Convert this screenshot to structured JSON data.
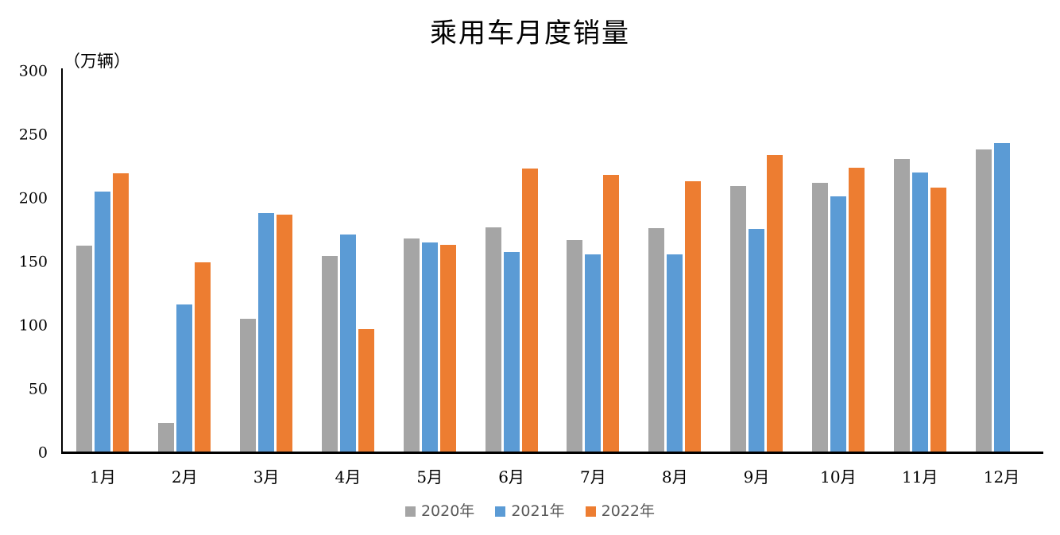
{
  "chart_data": {
    "type": "bar",
    "title": "乘用车月度销量",
    "y_unit_label": "（万辆）",
    "xlabel": "",
    "ylabel": "万辆",
    "ylim": [
      0,
      300
    ],
    "ytick_interval": 50,
    "yticks": [
      0,
      50,
      100,
      150,
      200,
      250,
      300
    ],
    "grid": false,
    "legend_position": "bottom",
    "categories": [
      "1月",
      "2月",
      "3月",
      "4月",
      "5月",
      "6月",
      "7月",
      "8月",
      "9月",
      "10月",
      "11月",
      "12月"
    ],
    "series": [
      {
        "name": "2020年",
        "color": "#A5A5A5",
        "values": [
          161.6,
          22.4,
          104.3,
          153.6,
          167.4,
          176.4,
          166.5,
          175.5,
          208.8,
          211.0,
          229.7,
          237.5
        ]
      },
      {
        "name": "2021年",
        "color": "#5B9BD5",
        "values": [
          204.5,
          115.5,
          187.4,
          170.4,
          164.6,
          156.9,
          155.1,
          155.2,
          175.1,
          200.7,
          219.2,
          242.2
        ]
      },
      {
        "name": "2022年",
        "color": "#ED7D31",
        "values": [
          218.6,
          148.7,
          186.4,
          96.5,
          162.3,
          222.2,
          217.5,
          212.5,
          233.2,
          223.1,
          207.5,
          null
        ]
      }
    ]
  }
}
